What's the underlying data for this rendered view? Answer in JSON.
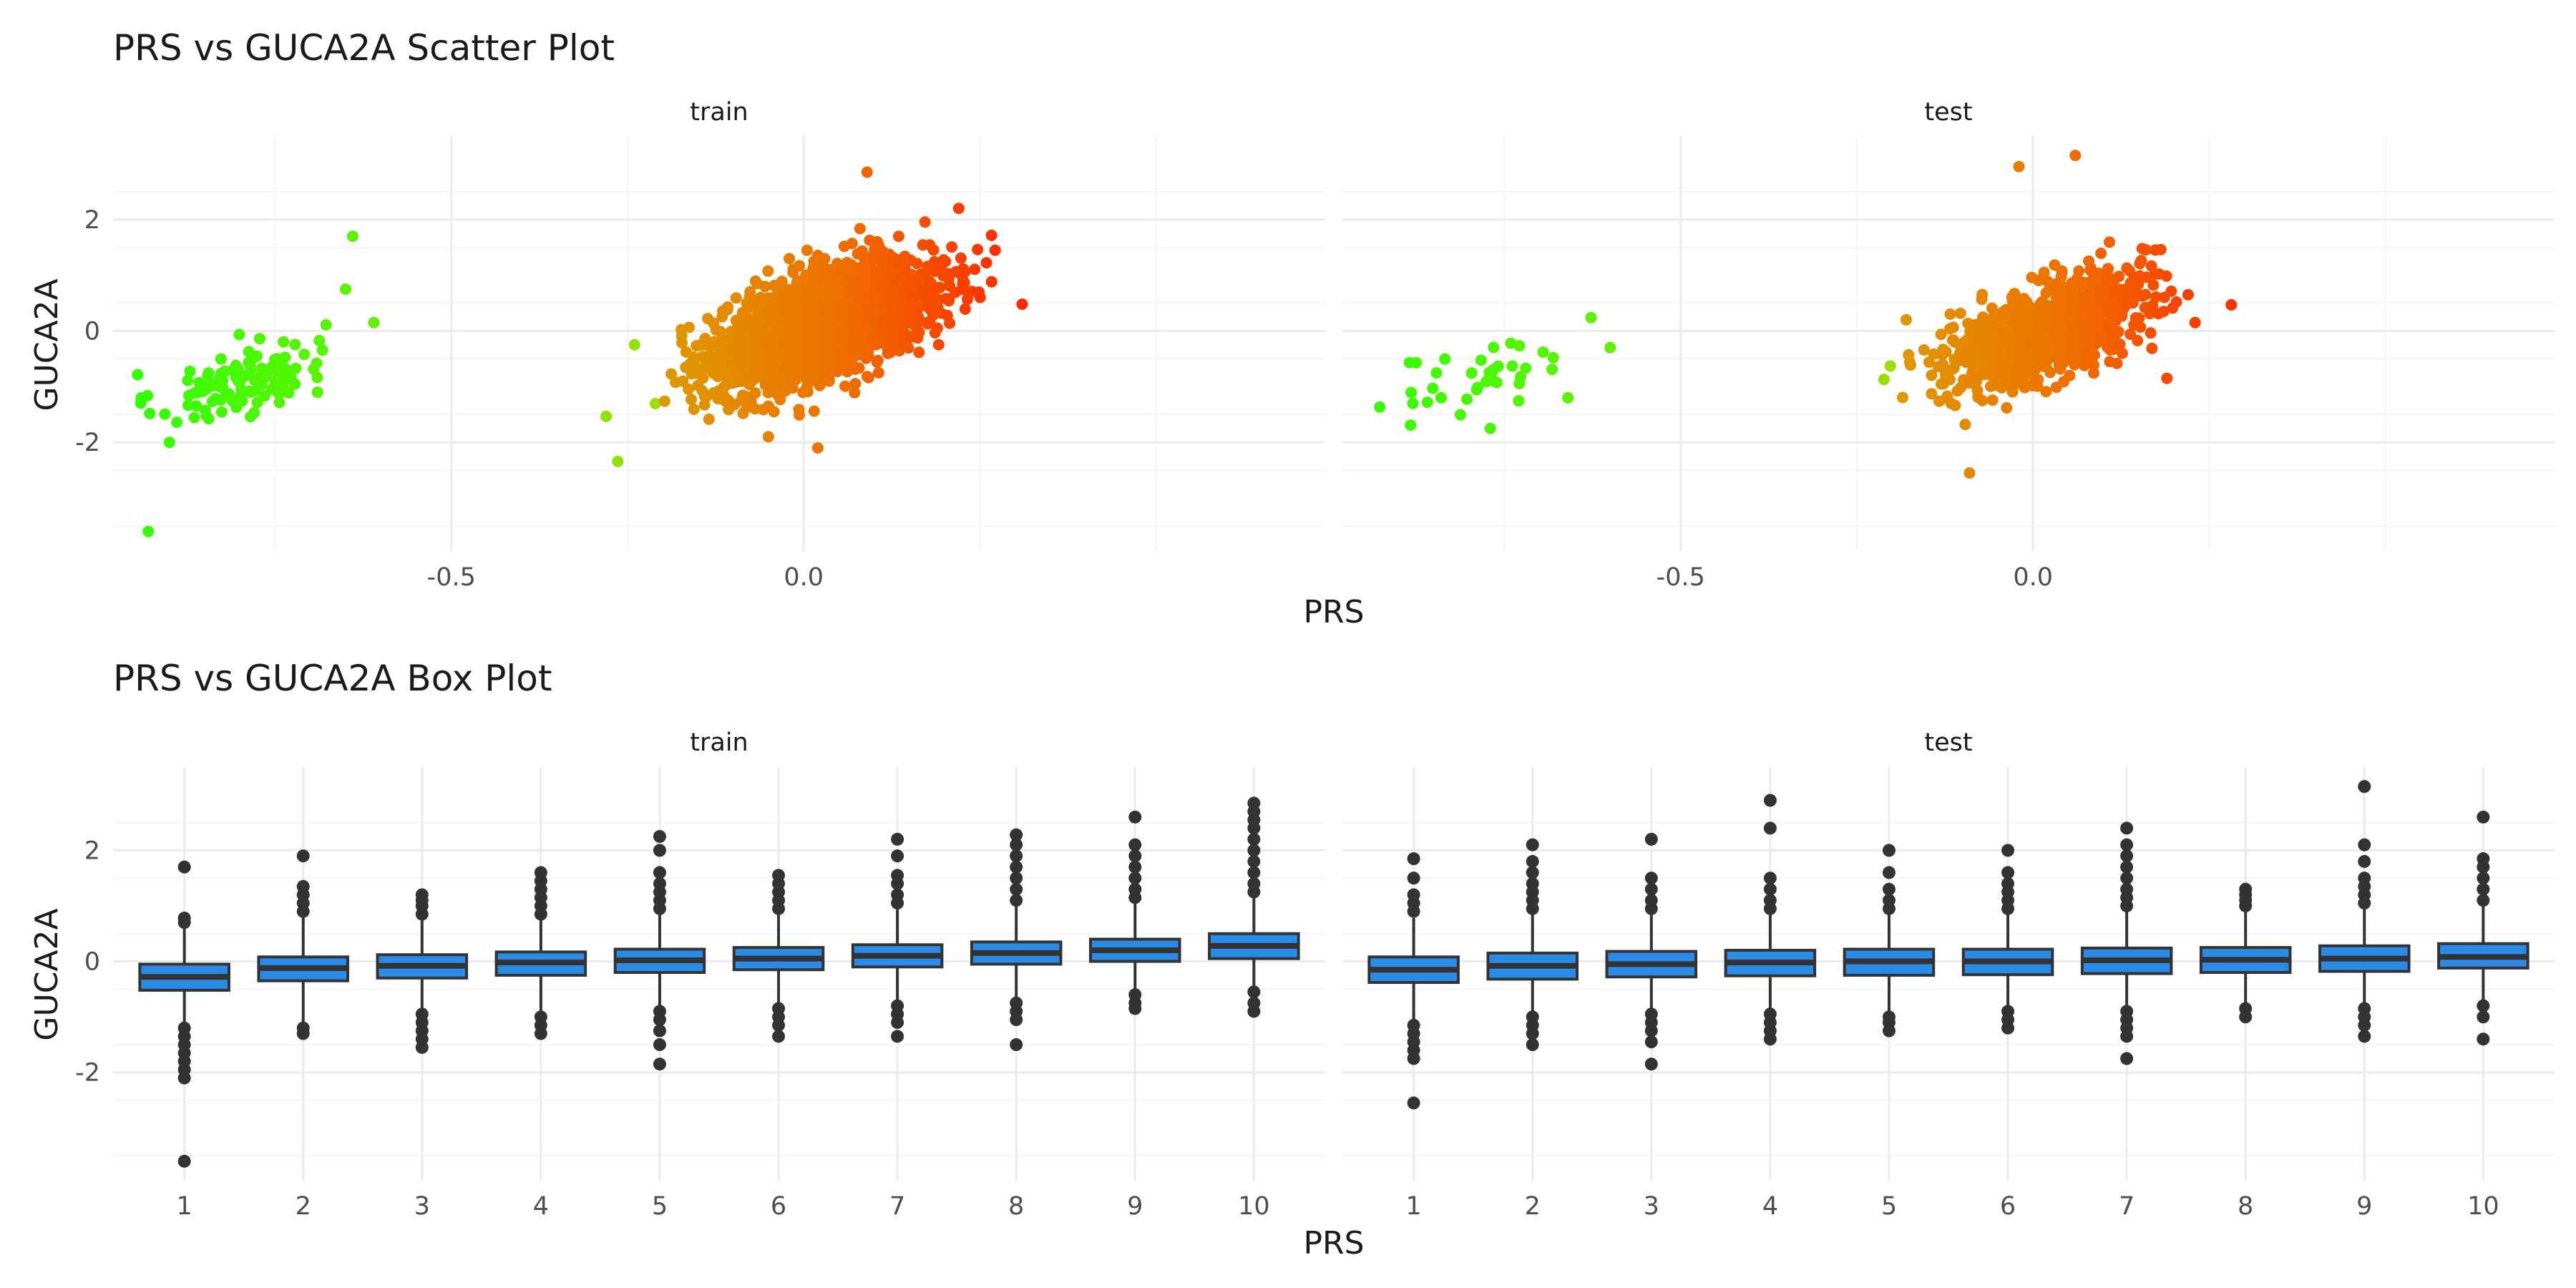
{
  "colors": {
    "low_prs": "#33ff00",
    "mid_prs": "#dd9a00",
    "high_prs": "#ff2a00",
    "box_fill": "#2b8ce8",
    "box_line": "#333333",
    "grid_major": "#ebebeb",
    "grid_minor": "#f5f5f5",
    "axis_text": "#4d4d4d",
    "title_text": "#1a1a1a"
  },
  "chart_data": [
    {
      "type": "scatter",
      "title": "PRS vs GUCA2A Scatter Plot",
      "xlabel": "PRS",
      "ylabel": "GUCA2A",
      "color_by": "PRS",
      "xlim": [
        -0.98,
        0.74
      ],
      "ylim": [
        -3.95,
        3.5
      ],
      "x_ticks": [
        -0.5,
        0.0
      ],
      "x_tick_labels": [
        "-0.5",
        "0.0"
      ],
      "y_ticks": [
        -2,
        0,
        2
      ],
      "y_tick_labels": [
        "-2",
        "0",
        "2"
      ],
      "grid": true,
      "panels": [
        {
          "label": "train",
          "xlim": [
            -0.98,
            0.74
          ],
          "clusters": [
            {
              "n": 110,
              "x_mean": -0.8,
              "x_sd": 0.06,
              "y_mean": -0.9,
              "y_sd": 0.4
            },
            {
              "n": 2400,
              "x_mean": 0.03,
              "x_sd": 0.075,
              "y_mean": 0.12,
              "y_sd": 0.55
            }
          ],
          "points": [
            {
              "x": -0.93,
              "y": -3.6
            },
            {
              "x": -0.64,
              "y": 1.7
            },
            {
              "x": -0.61,
              "y": 0.15
            },
            {
              "x": -0.65,
              "y": 0.75
            },
            {
              "x": 0.31,
              "y": 0.48
            },
            {
              "x": 0.22,
              "y": 2.2
            },
            {
              "x": 0.09,
              "y": 2.85
            },
            {
              "x": -0.94,
              "y": -1.2
            },
            {
              "x": -0.9,
              "y": -2.0
            },
            {
              "x": 0.02,
              "y": -2.1
            },
            {
              "x": -0.05,
              "y": -1.9
            },
            {
              "x": -0.24,
              "y": -0.25
            }
          ]
        },
        {
          "label": "test",
          "xlim": [
            -0.98,
            0.74
          ],
          "clusters": [
            {
              "n": 35,
              "x_mean": -0.77,
              "x_sd": 0.06,
              "y_mean": -0.8,
              "y_sd": 0.4
            },
            {
              "n": 900,
              "x_mean": 0.02,
              "x_sd": 0.07,
              "y_mean": 0.0,
              "y_sd": 0.5
            }
          ],
          "points": [
            {
              "x": -0.88,
              "y": -1.3
            },
            {
              "x": -0.6,
              "y": -0.3
            },
            {
              "x": -0.66,
              "y": -1.2
            },
            {
              "x": -0.77,
              "y": -1.75
            },
            {
              "x": 0.22,
              "y": 0.65
            },
            {
              "x": 0.23,
              "y": 0.15
            },
            {
              "x": 0.06,
              "y": 3.15
            },
            {
              "x": -0.09,
              "y": -2.55
            },
            {
              "x": -0.02,
              "y": 2.95
            },
            {
              "x": 0.19,
              "y": -0.85
            },
            {
              "x": -0.18,
              "y": 0.2
            }
          ]
        }
      ]
    },
    {
      "type": "box",
      "title": "PRS vs GUCA2A Box Plot",
      "xlabel": "PRS",
      "ylabel": "GUCA2A",
      "categories": [
        "1",
        "2",
        "3",
        "4",
        "5",
        "6",
        "7",
        "8",
        "9",
        "10"
      ],
      "ylim": [
        -3.95,
        3.5
      ],
      "y_ticks": [
        -2,
        0,
        2
      ],
      "y_tick_labels": [
        "-2",
        "0",
        "2"
      ],
      "grid": true,
      "panels": [
        {
          "label": "train",
          "boxes": [
            {
              "q1": -0.52,
              "median": -0.28,
              "q3": -0.05,
              "low": -1.1,
              "high": 0.62,
              "outliers": [
                0.7,
                0.78,
                1.7,
                -1.2,
                -1.35,
                -1.5,
                -1.65,
                -1.8,
                -1.95,
                -2.1,
                -3.6
              ]
            },
            {
              "q1": -0.35,
              "median": -0.12,
              "q3": 0.08,
              "low": -1.15,
              "high": 0.8,
              "outliers": [
                0.9,
                1.05,
                1.2,
                1.35,
                1.9,
                -1.2,
                -1.3
              ]
            },
            {
              "q1": -0.3,
              "median": -0.08,
              "q3": 0.12,
              "low": -0.9,
              "high": 0.75,
              "outliers": [
                0.85,
                1.0,
                1.1,
                1.2,
                -0.95,
                -1.1,
                -1.25,
                -1.4,
                -1.55
              ]
            },
            {
              "q1": -0.25,
              "median": -0.02,
              "q3": 0.17,
              "low": -0.95,
              "high": 0.8,
              "outliers": [
                0.85,
                1.0,
                1.15,
                1.3,
                1.45,
                1.6,
                -1.0,
                -1.15,
                -1.3
              ]
            },
            {
              "q1": -0.2,
              "median": 0.02,
              "q3": 0.22,
              "low": -0.85,
              "high": 0.85,
              "outliers": [
                0.95,
                1.1,
                1.25,
                1.4,
                1.6,
                2.0,
                2.25,
                -0.9,
                -1.05,
                -1.25,
                -1.5,
                -1.85
              ]
            },
            {
              "q1": -0.15,
              "median": 0.05,
              "q3": 0.25,
              "low": -0.8,
              "high": 0.85,
              "outliers": [
                0.95,
                1.1,
                1.25,
                1.4,
                1.55,
                -0.85,
                -1.0,
                -1.15,
                -1.35
              ]
            },
            {
              "q1": -0.1,
              "median": 0.1,
              "q3": 0.3,
              "low": -0.75,
              "high": 0.95,
              "outliers": [
                1.05,
                1.2,
                1.4,
                1.55,
                1.9,
                2.2,
                -0.8,
                -0.95,
                -1.1,
                -1.35
              ]
            },
            {
              "q1": -0.05,
              "median": 0.15,
              "q3": 0.35,
              "low": -0.7,
              "high": 1.0,
              "outliers": [
                1.1,
                1.3,
                1.5,
                1.7,
                1.9,
                2.1,
                2.28,
                -0.75,
                -0.9,
                -1.05,
                -1.5
              ]
            },
            {
              "q1": 0.0,
              "median": 0.2,
              "q3": 0.4,
              "low": -0.55,
              "high": 1.05,
              "outliers": [
                1.15,
                1.3,
                1.5,
                1.7,
                1.9,
                2.1,
                2.6,
                -0.6,
                -0.75,
                -0.85
              ]
            },
            {
              "q1": 0.05,
              "median": 0.28,
              "q3": 0.5,
              "low": -0.5,
              "high": 1.15,
              "outliers": [
                1.25,
                1.4,
                1.6,
                1.8,
                2.0,
                2.2,
                2.4,
                2.55,
                2.7,
                2.85,
                -0.55,
                -0.75,
                -0.9
              ]
            }
          ]
        },
        {
          "label": "test",
          "boxes": [
            {
              "q1": -0.38,
              "median": -0.15,
              "q3": 0.08,
              "low": -1.1,
              "high": 0.78,
              "outliers": [
                0.9,
                1.05,
                1.2,
                1.5,
                1.85,
                -1.15,
                -1.3,
                -1.45,
                -1.6,
                -1.75,
                -2.55
              ]
            },
            {
              "q1": -0.32,
              "median": -0.08,
              "q3": 0.15,
              "low": -0.95,
              "high": 0.85,
              "outliers": [
                0.95,
                1.1,
                1.25,
                1.4,
                1.6,
                1.8,
                2.1,
                -1.0,
                -1.15,
                -1.3,
                -1.5
              ]
            },
            {
              "q1": -0.28,
              "median": -0.05,
              "q3": 0.18,
              "low": -0.9,
              "high": 0.85,
              "outliers": [
                0.95,
                1.1,
                1.3,
                1.5,
                2.2,
                -0.95,
                -1.1,
                -1.25,
                -1.45,
                -1.85
              ]
            },
            {
              "q1": -0.26,
              "median": -0.02,
              "q3": 0.2,
              "low": -0.9,
              "high": 0.85,
              "outliers": [
                0.95,
                1.1,
                1.3,
                1.5,
                2.4,
                2.9,
                -0.95,
                -1.1,
                -1.25,
                -1.4
              ]
            },
            {
              "q1": -0.25,
              "median": 0.0,
              "q3": 0.22,
              "low": -0.9,
              "high": 0.85,
              "outliers": [
                0.95,
                1.1,
                1.3,
                1.6,
                2.0,
                -1.0,
                -1.1,
                -1.25
              ]
            },
            {
              "q1": -0.24,
              "median": 0.0,
              "q3": 0.22,
              "low": -0.85,
              "high": 0.85,
              "outliers": [
                0.95,
                1.1,
                1.25,
                1.4,
                1.6,
                2.0,
                -0.9,
                -1.05,
                -1.2
              ]
            },
            {
              "q1": -0.22,
              "median": 0.02,
              "q3": 0.24,
              "low": -0.85,
              "high": 0.9,
              "outliers": [
                1.0,
                1.15,
                1.3,
                1.5,
                1.7,
                1.9,
                2.1,
                2.4,
                -0.9,
                -1.05,
                -1.2,
                -1.35,
                -1.75
              ]
            },
            {
              "q1": -0.2,
              "median": 0.03,
              "q3": 0.25,
              "low": -0.8,
              "high": 0.9,
              "outliers": [
                1.0,
                1.1,
                1.2,
                1.3,
                -0.85,
                -1.0
              ]
            },
            {
              "q1": -0.18,
              "median": 0.05,
              "q3": 0.28,
              "low": -0.8,
              "high": 0.95,
              "outliers": [
                1.05,
                1.2,
                1.35,
                1.5,
                1.8,
                2.1,
                3.15,
                -0.85,
                -1.0,
                -1.15,
                -1.35
              ]
            },
            {
              "q1": -0.12,
              "median": 0.08,
              "q3": 0.32,
              "low": -0.75,
              "high": 1.0,
              "outliers": [
                1.1,
                1.3,
                1.5,
                1.7,
                1.85,
                2.6,
                -0.8,
                -1.0,
                -1.4
              ]
            }
          ]
        }
      ]
    }
  ]
}
